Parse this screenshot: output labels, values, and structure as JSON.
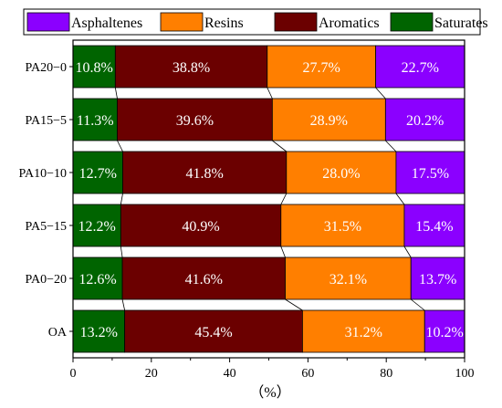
{
  "chart_data": {
    "type": "bar",
    "orientation": "horizontal",
    "stacked": true,
    "categories": [
      "PA20−0",
      "PA15−5",
      "PA10−10",
      "PA5−15",
      "PA0−20",
      "OA"
    ],
    "series": [
      {
        "name": "Saturates",
        "color": "#006400",
        "values": [
          10.8,
          11.3,
          12.7,
          12.2,
          12.6,
          13.2
        ],
        "labels": [
          "10.8%",
          "11.3%",
          "12.7%",
          "12.2%",
          "12.6%",
          "13.2%"
        ]
      },
      {
        "name": "Aromatics",
        "color": "#6b0000",
        "values": [
          38.8,
          39.6,
          41.8,
          40.9,
          41.6,
          45.4
        ],
        "labels": [
          "38.8%",
          "39.6%",
          "41.8%",
          "40.9%",
          "41.6%",
          "45.4%"
        ]
      },
      {
        "name": "Resins",
        "color": "#ff7f00",
        "values": [
          27.7,
          28.9,
          28.0,
          31.5,
          32.1,
          31.2
        ],
        "labels": [
          "27.7%",
          "28.9%",
          "28.0%",
          "31.5%",
          "32.1%",
          "31.2%"
        ]
      },
      {
        "name": "Asphaltenes",
        "color": "#8b00ff",
        "values": [
          22.7,
          20.2,
          17.5,
          15.4,
          13.7,
          10.2
        ],
        "labels": [
          "22.7%",
          "20.2%",
          "17.5%",
          "15.4%",
          "13.7%",
          "10.2%"
        ]
      }
    ],
    "legend_order": [
      "Asphaltenes",
      "Resins",
      "Aromatics",
      "Saturates"
    ],
    "legend_position": "top",
    "xlabel": "（%）",
    "xlim": [
      0,
      100
    ],
    "xticks": [
      0,
      20,
      40,
      60,
      80,
      100
    ],
    "xtick_labels": [
      "0",
      "20",
      "40",
      "60",
      "80",
      "100"
    ],
    "grid": false,
    "connector_lines": true
  }
}
